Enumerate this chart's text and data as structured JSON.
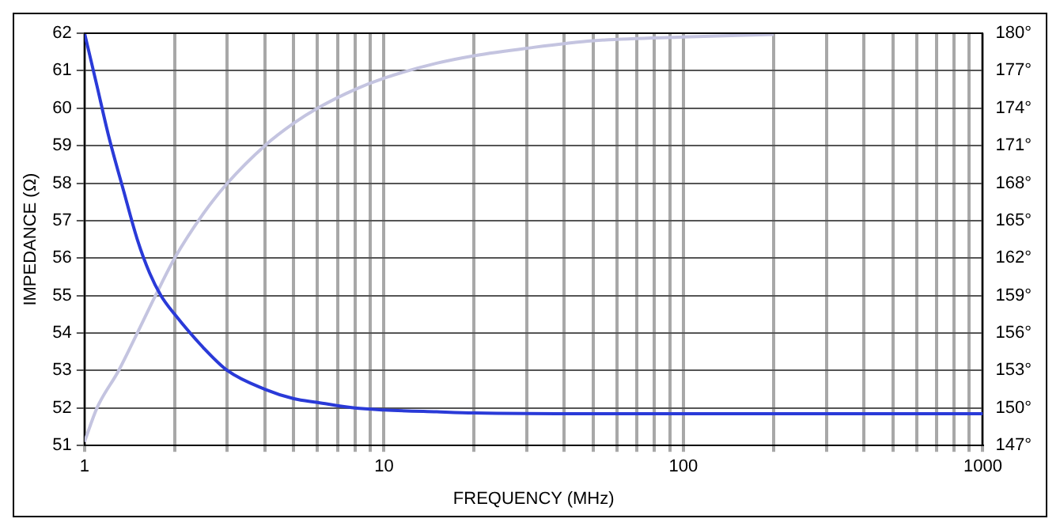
{
  "chart_data": {
    "type": "line",
    "xlabel": "FREQUENCY (MHz)",
    "ylabel": "IMPEDANCE (Ω)",
    "log": "x",
    "grid": true,
    "legend": false,
    "marker": "none",
    "line_style": "solid",
    "xlim": [
      1,
      1000
    ],
    "xticks": [
      1,
      {
        "value": 2,
        "label": null
      },
      {
        "value": 3,
        "label": null
      },
      {
        "value": 4,
        "label": null
      },
      {
        "value": 5,
        "label": null
      },
      {
        "value": 6,
        "label": null
      },
      {
        "value": 7,
        "label": null
      },
      {
        "value": 8,
        "label": null
      },
      {
        "value": 9,
        "label": null
      },
      10,
      {
        "value": 20,
        "label": null
      },
      {
        "value": 30,
        "label": null
      },
      {
        "value": 40,
        "label": null
      },
      {
        "value": 50,
        "label": null
      },
      {
        "value": 60,
        "label": null
      },
      {
        "value": 70,
        "label": null
      },
      {
        "value": 80,
        "label": null
      },
      {
        "value": 90,
        "label": null
      },
      100,
      {
        "value": 200,
        "label": null
      },
      {
        "value": 300,
        "label": null
      },
      {
        "value": 400,
        "label": null
      },
      {
        "value": 500,
        "label": null
      },
      {
        "value": 600,
        "label": null
      },
      {
        "value": 700,
        "label": null
      },
      {
        "value": 800,
        "label": null
      },
      {
        "value": 900,
        "label": null
      },
      1000
    ],
    "ylim": [
      51,
      62
    ],
    "yticks": [
      51,
      52,
      53,
      54,
      55,
      56,
      57,
      58,
      59,
      60,
      61,
      62
    ],
    "y2lim": [
      147,
      180
    ],
    "y2ticks": [
      {
        "value": 147,
        "label": "147°"
      },
      {
        "value": 150,
        "label": "150°"
      },
      {
        "value": 153,
        "label": "153°"
      },
      {
        "value": 156,
        "label": "156°"
      },
      {
        "value": 159,
        "label": "159°"
      },
      {
        "value": 162,
        "label": "162°"
      },
      {
        "value": 165,
        "label": "165°"
      },
      {
        "value": 168,
        "label": "168°"
      },
      {
        "value": 171,
        "label": "171°"
      },
      {
        "value": 174,
        "label": "174°"
      },
      {
        "value": 177,
        "label": "177°"
      },
      {
        "value": 180,
        "label": "180°"
      }
    ],
    "series": [
      {
        "color": "#2a3ad8",
        "x": [
          1,
          1.1,
          1.2,
          1.35,
          1.5,
          1.65,
          1.8,
          2,
          2.5,
          3,
          4,
          5,
          6,
          8,
          10,
          15,
          20,
          50,
          100,
          1000
        ],
        "values": [
          62,
          60.6,
          59.3,
          57.8,
          56.5,
          55.6,
          55,
          54.5,
          53.6,
          53,
          52.5,
          52.25,
          52.15,
          52,
          51.95,
          51.9,
          51.87,
          51.85,
          51.85,
          51.85
        ]
      },
      {
        "color": "#c4c4e0",
        "axis": "y2",
        "x": [
          1,
          1.1,
          1.3,
          1.5,
          1.75,
          2,
          2.5,
          3,
          4,
          5,
          6,
          8,
          10,
          15,
          20,
          30,
          50,
          100,
          200
        ],
        "values": [
          147.3,
          150,
          153,
          156,
          159.3,
          162,
          165.6,
          168,
          171,
          172.8,
          174,
          175.5,
          176.4,
          177.6,
          178.2,
          178.8,
          179.4,
          179.7,
          179.9
        ]
      }
    ]
  }
}
